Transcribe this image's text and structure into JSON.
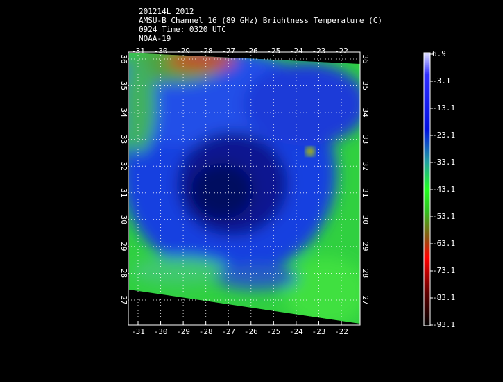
{
  "header": {
    "lines": [
      "201214L 2012",
      "AMSU-B Channel 16 (89 GHz) Brightness Temperature (C)",
      "0924 Time: 0320 UTC",
      "NOAA-19"
    ]
  },
  "map": {
    "lon_ticks": [
      -31,
      -30,
      -29,
      -28,
      -27,
      -26,
      -25,
      -24,
      -23,
      -22
    ],
    "lat_ticks": [
      36,
      35,
      34,
      33,
      32,
      31,
      30,
      29,
      28,
      27
    ]
  },
  "colorbar": {
    "ticks": [
      6.9,
      -3.1,
      -13.1,
      -23.1,
      -33.1,
      -43.1,
      -53.1,
      -63.1,
      -73.1,
      -83.1,
      -93.1
    ]
  }
}
